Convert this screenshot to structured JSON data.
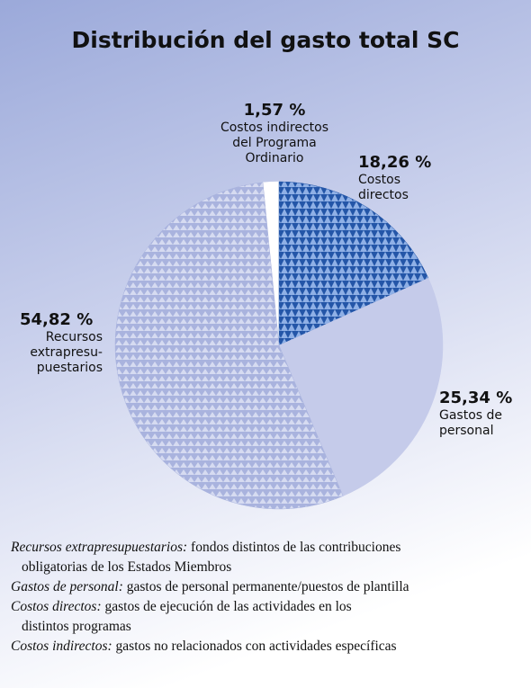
{
  "chart_data": {
    "type": "pie",
    "title": "Distribución del gasto total SC",
    "categories": [
      "Costos indirectos\ndel Programa\nOrdinario",
      "Costos\ndirectos",
      "Gastos de\npersonal",
      "Recursos\nextrapresu-\npuestarios"
    ],
    "values": [
      1.57,
      18.26,
      25.34,
      54.82
    ],
    "value_labels": [
      "1,57 %",
      "18,26 %",
      "25,34 %",
      "54,82 %"
    ],
    "colors": [
      "#ffffff",
      "#2456a8",
      "#c5cbea",
      "#a9b3de"
    ]
  },
  "notes": [
    {
      "term": "Recursos extrapresupuestarios:",
      "text": " fondos distintos de las contribuciones obligatorias de los Estados Miembros"
    },
    {
      "term": "Gastos de personal:",
      "text": " gastos de personal permanente/puestos de plantilla"
    },
    {
      "term": "Costos  directos:",
      "text": " gastos de ejecución de las actividades en los distintos programas"
    },
    {
      "term": "Costos indirectos:",
      "text": " gastos no relacionados con actividades específicas"
    }
  ]
}
